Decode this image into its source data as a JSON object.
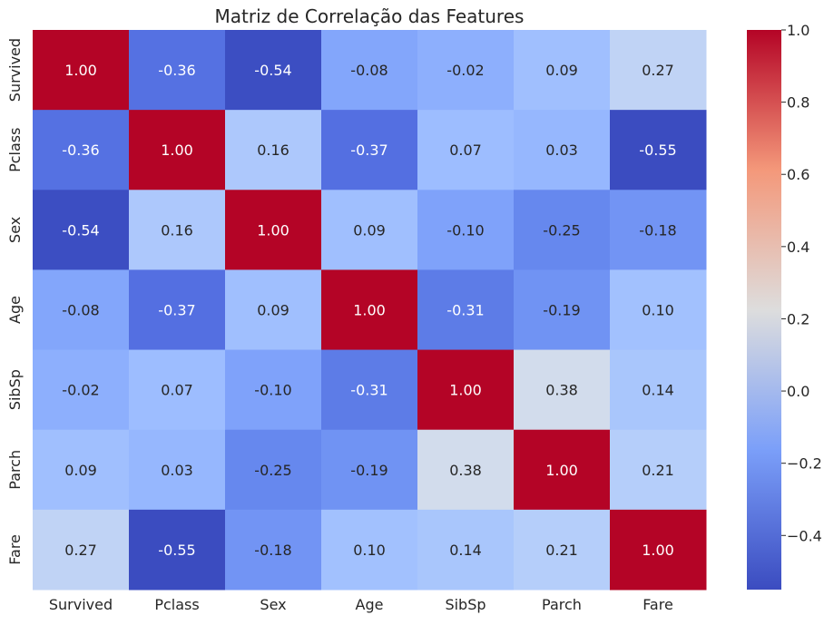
{
  "chart_data": {
    "type": "heatmap",
    "title": "Matriz de Correlação das Features",
    "xlabel": "",
    "ylabel": "",
    "x_labels": [
      "Survived",
      "Pclass",
      "Sex",
      "Age",
      "SibSp",
      "Parch",
      "Fare"
    ],
    "y_labels": [
      "Survived",
      "Pclass",
      "Sex",
      "Age",
      "SibSp",
      "Parch",
      "Fare"
    ],
    "values": [
      [
        1.0,
        -0.36,
        -0.54,
        -0.08,
        -0.02,
        0.09,
        0.27
      ],
      [
        -0.36,
        1.0,
        0.16,
        -0.37,
        0.07,
        0.03,
        -0.55
      ],
      [
        -0.54,
        0.16,
        1.0,
        0.09,
        -0.1,
        -0.25,
        -0.18
      ],
      [
        -0.08,
        -0.37,
        0.09,
        1.0,
        -0.31,
        -0.19,
        0.1
      ],
      [
        -0.02,
        0.07,
        -0.1,
        -0.31,
        1.0,
        0.38,
        0.14
      ],
      [
        0.09,
        0.03,
        -0.25,
        -0.19,
        0.38,
        1.0,
        0.21
      ],
      [
        0.27,
        -0.55,
        -0.18,
        0.1,
        0.14,
        0.21,
        1.0
      ]
    ],
    "annotation_format": "0.00",
    "colormap": "coolwarm",
    "colorbar": {
      "range": [
        -0.55,
        1.0
      ],
      "ticks": [
        1.0,
        0.8,
        0.6,
        0.4,
        0.2,
        0.0,
        -0.2,
        -0.4
      ],
      "tick_labels": [
        "1.0",
        "0.8",
        "0.6",
        "0.4",
        "0.2",
        "0.0",
        "−0.2",
        "−0.4"
      ]
    }
  }
}
